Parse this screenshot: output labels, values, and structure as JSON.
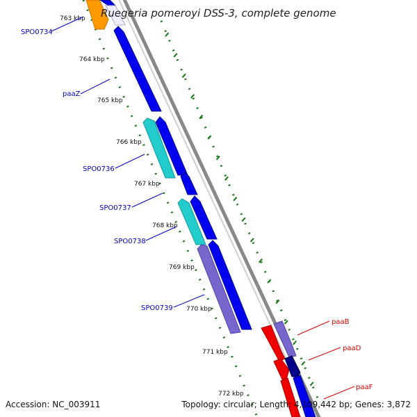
{
  "title": "Ruegeria pomeroyi DSS-3, complete genome",
  "footer": {
    "accession": "Accession: NC_003911",
    "summary": "Topology: circular; Length: 4,109,442 bp; Genes: 3,872"
  },
  "colors": {
    "forward_gene": "#0000ee",
    "reverse_gene_cyan": "#22cccc",
    "reverse_gene_purple": "#7766cc",
    "orange_gene": "#ff9900",
    "red_gene": "#ee0000",
    "navy_gene": "#000088",
    "backbone": "#888888",
    "ticks": "#117711",
    "label_blue": "#0000cc",
    "label_red": "#dd0000"
  },
  "kbp_ticks": [
    "763 kbp",
    "764 kbp",
    "765 kbp",
    "766 kbp",
    "767 kbp",
    "768 kbp",
    "769 kbp",
    "770 kbp",
    "771 kbp",
    "772 kbp"
  ],
  "gene_labels": [
    {
      "text": "SPO0734",
      "color": "label_blue"
    },
    {
      "text": "paaZ",
      "color": "label_blue"
    },
    {
      "text": "SPO0736",
      "color": "label_blue"
    },
    {
      "text": "SPO0737",
      "color": "label_blue"
    },
    {
      "text": "SPO0738",
      "color": "label_blue"
    },
    {
      "text": "SPO0739",
      "color": "label_blue"
    },
    {
      "text": "paaB",
      "color": "label_red"
    },
    {
      "text": "paaD",
      "color": "label_red"
    },
    {
      "text": "paaF",
      "color": "label_red"
    }
  ]
}
